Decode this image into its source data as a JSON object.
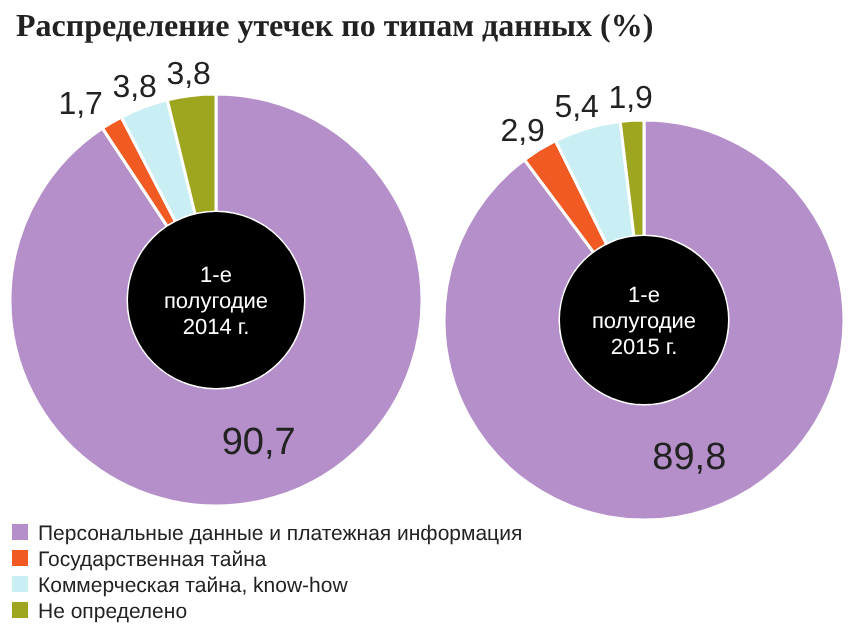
{
  "chart_data": [
    {
      "type": "donut",
      "title": "Распределение утечек по типам данных (%)",
      "annotations": [
        "1-е полугодие 2014 г."
      ],
      "categories": [
        "Персональные данные и платежная информация",
        "Государственная тайна",
        "Коммерческая тайна, know-how",
        "Не определено"
      ],
      "values": [
        90.7,
        1.7,
        3.8,
        3.8
      ],
      "value_labels": [
        "90,7",
        "1,7",
        "3,8",
        "3,8"
      ],
      "colors": [
        "#b58fc9",
        "#f15a22",
        "#c9eef3",
        "#9ea51f"
      ],
      "legend": "bottom"
    },
    {
      "type": "donut",
      "annotations": [
        "1-е полугодие 2015 г."
      ],
      "categories": [
        null,
        null,
        null,
        null
      ],
      "values": [
        89.8,
        2.9,
        5.4,
        1.9
      ],
      "value_labels": [
        "89,8",
        "2,9",
        "5,4",
        "1,9"
      ],
      "colors": [
        "#b58fc9",
        "#f15a22",
        "#c9eef3",
        "#9ea51f"
      ]
    }
  ]
}
